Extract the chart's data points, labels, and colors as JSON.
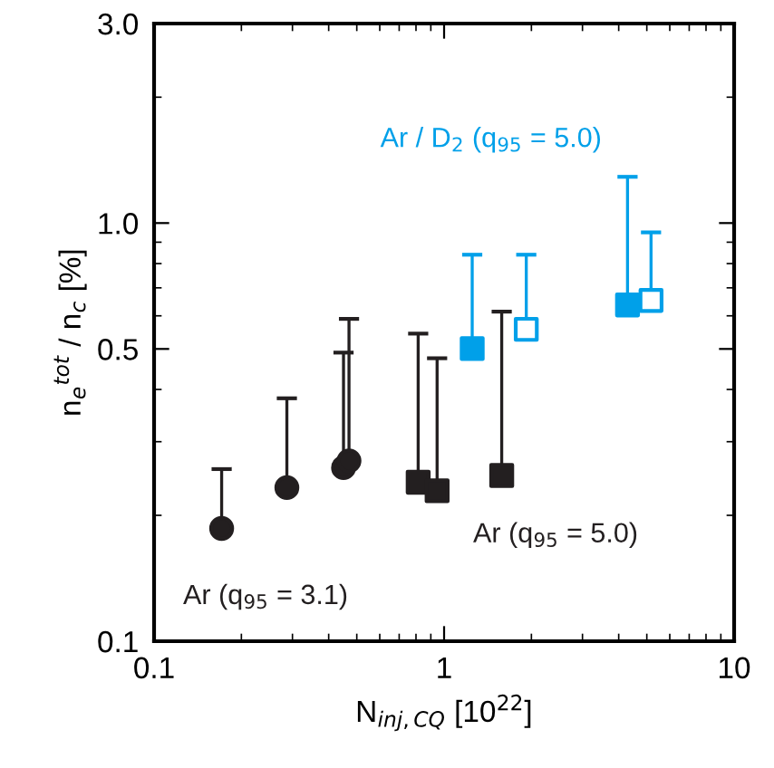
{
  "chart_data": {
    "type": "scatter",
    "xlabel": "N$_{inj,CQ}$ [10$^{22}$]",
    "ylabel": "n$_{e}$$^{tot}$ / n$_{c}$ [%]",
    "log": "xy",
    "xlim": [
      0.1,
      10
    ],
    "ylim": [
      0.1,
      3.0
    ],
    "xticks": [
      0.1,
      1,
      10
    ],
    "yticks": [
      0.1,
      0.5,
      {
        "value": 1,
        "label": "1.0"
      },
      {
        "value": 3,
        "label": "3.0"
      }
    ],
    "grid": false,
    "series": [
      {
        "marker": "circle",
        "color": "#231f20",
        "x": [
          0.171,
          0.287,
          0.45,
          0.47
        ],
        "values": [
          0.186,
          0.233,
          0.26,
          0.27
        ],
        "errors": [
          [
            0.186,
            0.258
          ],
          [
            0.233,
            0.381
          ],
          [
            0.26,
            0.49
          ],
          [
            0.27,
            0.59
          ]
        ]
      },
      {
        "marker": "square",
        "color": "#231f20",
        "x": [
          0.814,
          0.946,
          1.58
        ],
        "values": [
          0.24,
          0.229,
          0.249
        ],
        "errors": [
          [
            0.24,
            0.544
          ],
          [
            0.229,
            0.475
          ],
          [
            0.249,
            0.614
          ]
        ]
      },
      {
        "marker": "square",
        "color": "#00a0e9",
        "x": [
          1.25,
          4.29
        ],
        "values": [
          0.501,
          0.637
        ],
        "errors": [
          [
            0.501,
            0.84
          ],
          [
            0.637,
            1.29
          ]
        ]
      },
      {
        "marker": "square",
        "colors": [
          "#ffffff",
          "#ffffff"
        ],
        "color": "#00a0e9",
        "x": [
          1.92,
          5.17
        ],
        "values": [
          0.557,
          0.653
        ],
        "errors": [
          [
            0.557,
            0.84
          ],
          [
            0.653,
            0.95
          ]
        ]
      }
    ],
    "annotations": [
      "Ar (q$_{95}$ = 3.1)",
      "Ar (q$_{95}$ = 5.0)",
      "Ar / D$_{2}$ (q$_{95}$ = 5.0)"
    ]
  }
}
